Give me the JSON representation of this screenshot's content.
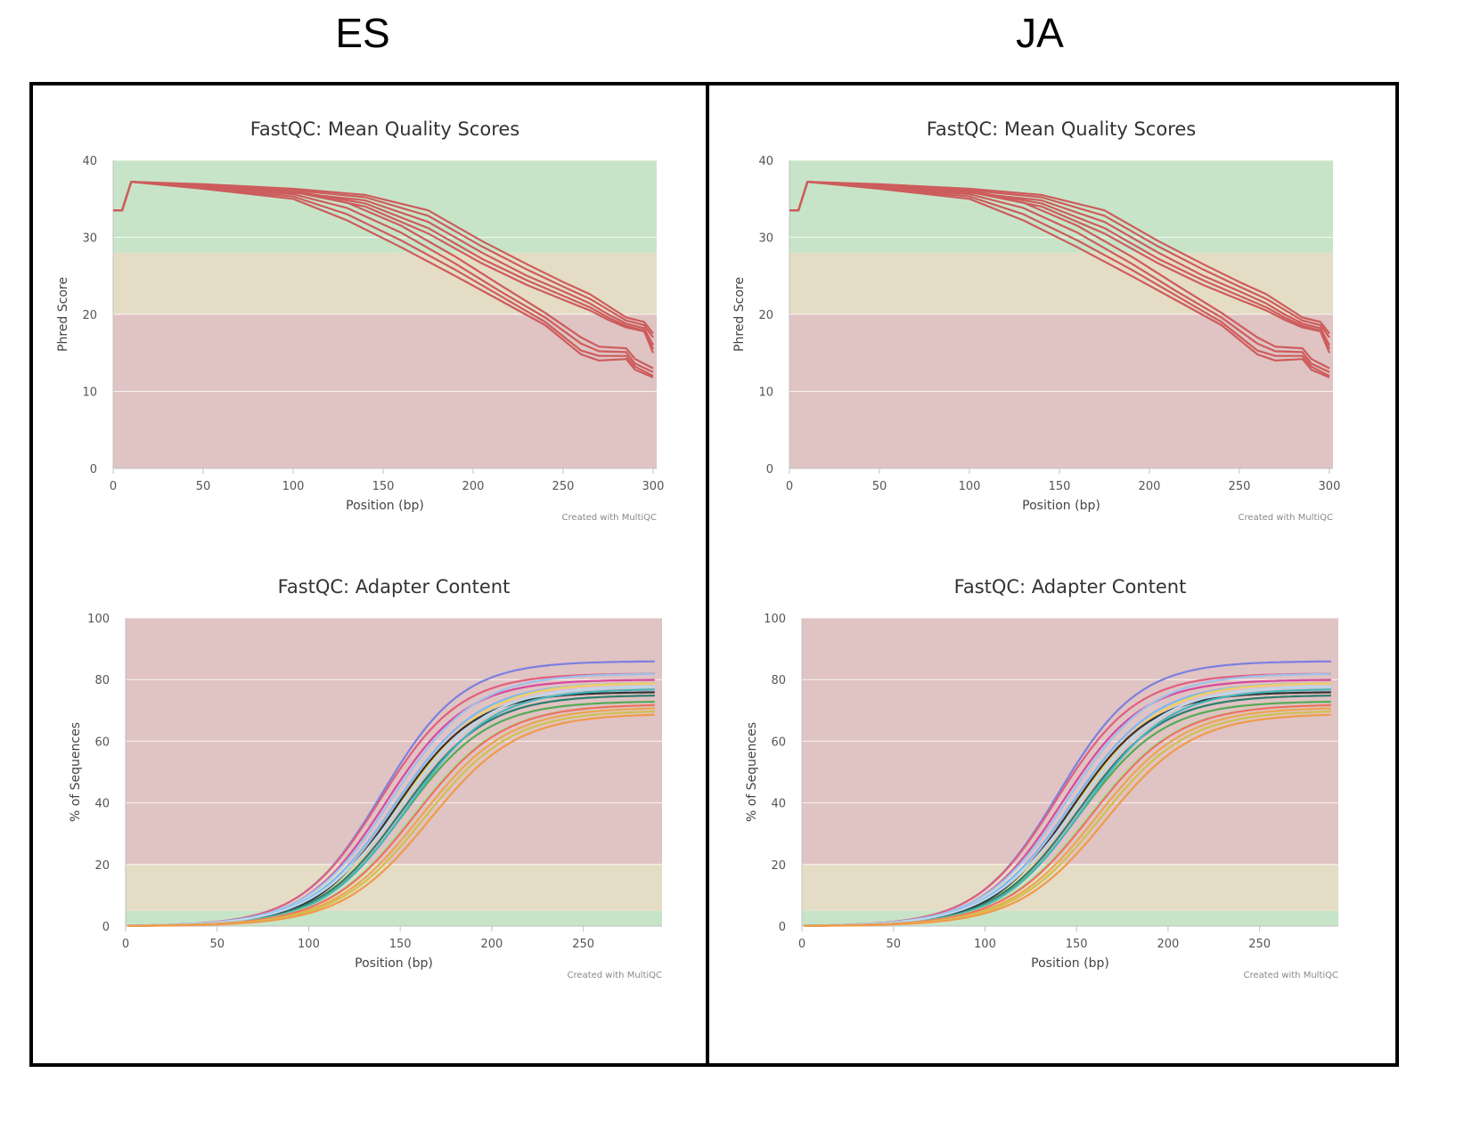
{
  "headers": {
    "left": "ES",
    "right": "JA"
  },
  "panels": [
    {
      "id": "es",
      "quality": {
        "title": "FastQC: Mean Quality Scores",
        "xlabel": "Position (bp)",
        "ylabel": "Phred Score",
        "credit": "Created with MultiQC"
      },
      "adapter": {
        "title": "FastQC: Adapter Content",
        "xlabel": "Position (bp)",
        "ylabel": "% of Sequences",
        "credit": "Created with MultiQC"
      }
    },
    {
      "id": "ja",
      "quality": {
        "title": "FastQC: Mean Quality Scores",
        "xlabel": "Position (bp)",
        "ylabel": "Phred Score",
        "credit": "Created with MultiQC"
      },
      "adapter": {
        "title": "FastQC: Adapter Content",
        "xlabel": "Position (bp)",
        "ylabel": "% of Sequences",
        "credit": "Created with MultiQC"
      }
    }
  ],
  "chart_data": [
    {
      "type": "line",
      "title": "FastQC: Mean Quality Scores",
      "xlabel": "Position (bp)",
      "ylabel": "Phred Score",
      "xlim": [
        0,
        302
      ],
      "ylim": [
        0,
        40
      ],
      "xticks": [
        0,
        50,
        100,
        150,
        200,
        250,
        300
      ],
      "yticks": [
        0,
        10,
        20,
        30,
        40
      ],
      "bands": [
        {
          "from": 28,
          "to": 40,
          "color": "#c8e4c8"
        },
        {
          "from": 20,
          "to": 28,
          "color": "#e5dcc5"
        },
        {
          "from": 0,
          "to": 20,
          "color": "#e0c3c3"
        }
      ],
      "line_color": "#cd5c5c",
      "series": [
        {
          "x": [
            0,
            5,
            10,
            50,
            100,
            140,
            175,
            205,
            230,
            250,
            265,
            275,
            285,
            295,
            300
          ],
          "y": [
            33.5,
            33.5,
            37.2,
            36.9,
            36.3,
            35.5,
            33.5,
            29.5,
            26.5,
            24.2,
            22.6,
            21.1,
            19.6,
            19.0,
            17.5
          ]
        },
        {
          "x": [
            0,
            5,
            10,
            50,
            100,
            140,
            175,
            205,
            230,
            250,
            265,
            275,
            285,
            295,
            300
          ],
          "y": [
            33.5,
            33.5,
            37.2,
            36.7,
            36.1,
            35.2,
            32.8,
            28.8,
            25.8,
            23.6,
            22.0,
            20.6,
            19.2,
            18.6,
            17.0
          ]
        },
        {
          "x": [
            0,
            5,
            10,
            50,
            100,
            140,
            175,
            205,
            230,
            250,
            265,
            275,
            285,
            295,
            300
          ],
          "y": [
            33.5,
            33.5,
            37.2,
            36.5,
            35.8,
            34.8,
            32.0,
            28.0,
            25.0,
            23.0,
            21.4,
            20.0,
            18.8,
            18.2,
            16.0
          ]
        },
        {
          "x": [
            0,
            5,
            10,
            50,
            100,
            140,
            175,
            205,
            230,
            250,
            265,
            275,
            285,
            295,
            300
          ],
          "y": [
            33.5,
            33.5,
            37.2,
            36.6,
            36.0,
            34.4,
            31.2,
            27.2,
            24.4,
            22.4,
            20.9,
            19.6,
            18.5,
            17.9,
            15.5
          ]
        },
        {
          "x": [
            0,
            5,
            10,
            50,
            100,
            140,
            175,
            205,
            230,
            250,
            265,
            275,
            285,
            295,
            300
          ],
          "y": [
            33.5,
            33.5,
            37.2,
            36.4,
            35.9,
            34.0,
            30.5,
            26.6,
            23.8,
            21.9,
            20.5,
            19.3,
            18.3,
            17.8,
            15.0
          ]
        },
        {
          "x": [
            0,
            5,
            10,
            50,
            100,
            130,
            160,
            190,
            215,
            240,
            260,
            270,
            285,
            290,
            300
          ],
          "y": [
            33.5,
            33.5,
            37.2,
            36.7,
            36.0,
            34.5,
            31.5,
            27.5,
            23.8,
            20.2,
            17.0,
            15.8,
            15.6,
            14.2,
            13.0
          ]
        },
        {
          "x": [
            0,
            5,
            10,
            50,
            100,
            130,
            160,
            190,
            215,
            240,
            260,
            270,
            285,
            290,
            300
          ],
          "y": [
            33.5,
            33.5,
            37.2,
            36.5,
            35.6,
            33.8,
            30.6,
            26.6,
            23.0,
            19.6,
            16.2,
            15.2,
            15.1,
            13.6,
            12.5
          ]
        },
        {
          "x": [
            0,
            5,
            10,
            50,
            100,
            130,
            160,
            190,
            215,
            240,
            260,
            270,
            285,
            290,
            300
          ],
          "y": [
            33.5,
            33.5,
            37.2,
            36.4,
            35.3,
            33.0,
            29.6,
            25.8,
            22.4,
            19.0,
            15.3,
            14.6,
            14.6,
            13.2,
            12.0
          ]
        },
        {
          "x": [
            0,
            5,
            10,
            50,
            100,
            130,
            160,
            190,
            215,
            240,
            260,
            270,
            285,
            290,
            300
          ],
          "y": [
            33.5,
            33.5,
            37.2,
            36.3,
            35.0,
            32.2,
            28.7,
            25.0,
            21.8,
            18.6,
            14.8,
            14.0,
            14.2,
            12.8,
            11.8
          ]
        }
      ]
    },
    {
      "type": "line",
      "title": "FastQC: Adapter Content",
      "xlabel": "Position (bp)",
      "ylabel": "% of Sequences",
      "xlim": [
        0,
        293
      ],
      "ylim": [
        0,
        100
      ],
      "xticks": [
        0,
        50,
        100,
        150,
        200,
        250
      ],
      "yticks": [
        0,
        20,
        40,
        60,
        80,
        100
      ],
      "bands": [
        {
          "from": 20,
          "to": 100,
          "color": "#e0c3c3"
        },
        {
          "from": 5,
          "to": 20,
          "color": "#e5dcc5"
        },
        {
          "from": 0,
          "to": 5,
          "color": "#c8e4c8"
        }
      ],
      "curve_model": "logistic: y = plateau / (1 + exp(-(x - midpoint) / scale))",
      "series": [
        {
          "color": "#7b7fe0",
          "plateau": 86,
          "midpoint": 140,
          "scale": 22
        },
        {
          "color": "#e0607e",
          "plateau": 82,
          "midpoint": 139,
          "scale": 22
        },
        {
          "color": "#d84a9a",
          "plateau": 80,
          "midpoint": 142,
          "scale": 22
        },
        {
          "color": "#9cc2ee",
          "plateau": 82,
          "midpoint": 145,
          "scale": 23
        },
        {
          "color": "#7bb8f0",
          "plateau": 79,
          "midpoint": 147,
          "scale": 23
        },
        {
          "color": "#f0d060",
          "plateau": 79,
          "midpoint": 150,
          "scale": 23
        },
        {
          "color": "#333333",
          "plateau": 76,
          "midpoint": 147,
          "scale": 22
        },
        {
          "color": "#2e7d6e",
          "plateau": 75,
          "midpoint": 151,
          "scale": 23
        },
        {
          "color": "#55aa55",
          "plateau": 73,
          "midpoint": 152,
          "scale": 23
        },
        {
          "color": "#43b6c0",
          "plateau": 77,
          "midpoint": 154,
          "scale": 23
        },
        {
          "color": "#b8d8f0",
          "plateau": 78,
          "midpoint": 150,
          "scale": 24
        },
        {
          "color": "#9ee39e",
          "plateau": 72,
          "midpoint": 157,
          "scale": 24
        },
        {
          "color": "#f07060",
          "plateau": 72,
          "midpoint": 158,
          "scale": 24
        },
        {
          "color": "#e8a850",
          "plateau": 71,
          "midpoint": 161,
          "scale": 24
        },
        {
          "color": "#d0c050",
          "plateau": 70,
          "midpoint": 163,
          "scale": 24
        },
        {
          "color": "#f09a4a",
          "plateau": 69,
          "midpoint": 166,
          "scale": 24
        }
      ]
    }
  ]
}
